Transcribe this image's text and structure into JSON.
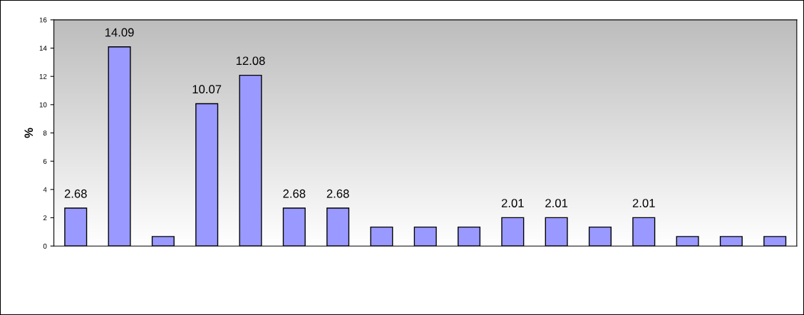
{
  "chart_data": {
    "type": "bar",
    "ylabel": "%",
    "categories": [
      null,
      null,
      null,
      null,
      null,
      null,
      null,
      null,
      null,
      null,
      null,
      null,
      null,
      null,
      null,
      null,
      null
    ],
    "values": [
      2.68,
      14.09,
      0.67,
      10.07,
      12.08,
      2.68,
      2.68,
      1.34,
      1.34,
      1.34,
      2.01,
      2.01,
      1.34,
      2.01,
      0.67,
      0.67,
      0.67
    ],
    "value_labels": [
      "2.68",
      "14.09",
      null,
      "10.07",
      "12.08",
      "2.68",
      "2.68",
      null,
      null,
      null,
      "2.01",
      "2.01",
      null,
      "2.01",
      null,
      null,
      null
    ],
    "color": "#9999ff",
    "ylim": [
      0,
      16
    ],
    "yticks": [
      0,
      2,
      4,
      6,
      8,
      10,
      12,
      14,
      16
    ],
    "grid": false
  }
}
